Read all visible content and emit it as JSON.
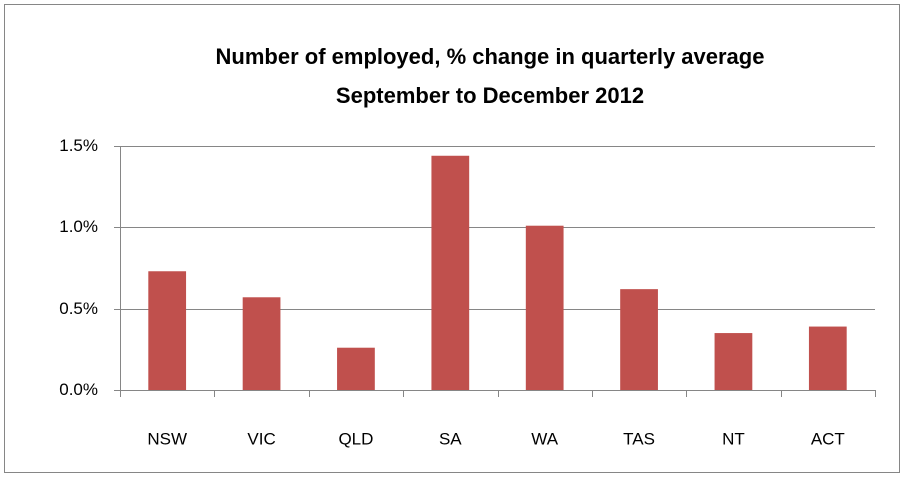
{
  "chart_data": {
    "type": "bar",
    "title": "Number of employed, % change in quarterly average",
    "subtitle": "September to December 2012",
    "categories": [
      "NSW",
      "VIC",
      "QLD",
      "SA",
      "WA",
      "TAS",
      "NT",
      "ACT"
    ],
    "values": [
      0.73,
      0.57,
      0.26,
      1.44,
      1.01,
      0.62,
      0.35,
      0.39
    ],
    "color": "#c0504d",
    "ylim": [
      0,
      1.5
    ],
    "yticks": [
      {
        "value": 0,
        "label": "0.0%"
      },
      {
        "value": 0.5,
        "label": "0.5%"
      },
      {
        "value": 1,
        "label": "1.0%"
      },
      {
        "value": 1.5,
        "label": "1.5%"
      }
    ],
    "grid": true
  }
}
